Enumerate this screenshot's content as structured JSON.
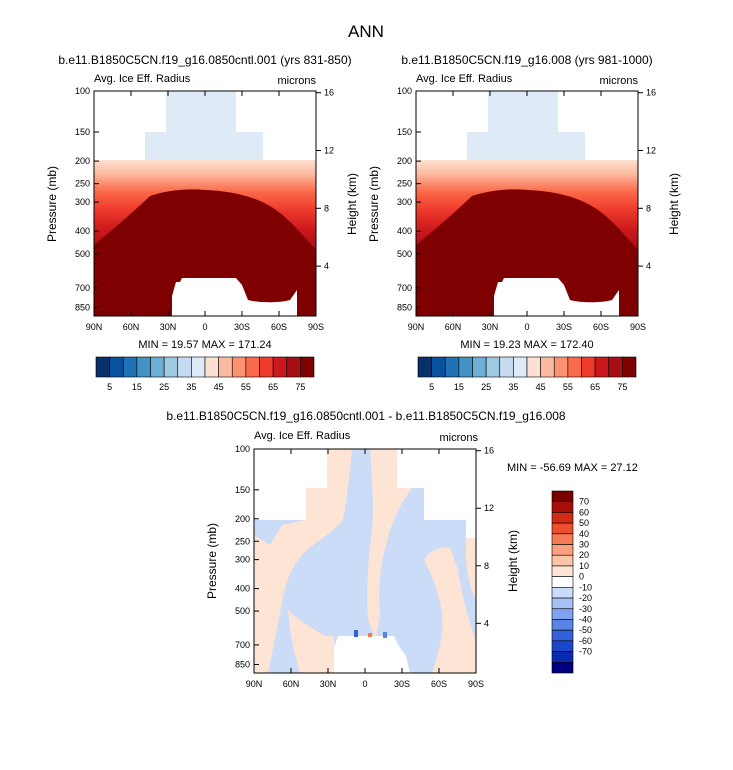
{
  "title": "ANN",
  "colors": {
    "base_scale": [
      "#08306b",
      "#08519c",
      "#2171b5",
      "#4292c6",
      "#6baed6",
      "#9ecae1",
      "#c6dbef",
      "#deebf7",
      "#fee0d2",
      "#fcbba1",
      "#fc9272",
      "#fb6a4a",
      "#ef3b2c",
      "#cb181d",
      "#a50f15",
      "#7f0000"
    ],
    "diff_scale": [
      "#00007f",
      "#0a2bb0",
      "#1c46cc",
      "#3560db",
      "#5a83e6",
      "#7fa3ee",
      "#a6c2f4",
      "#cbdcf8",
      "#ffffff",
      "#fde4d4",
      "#fbc5a9",
      "#f9a07f",
      "#f57a57",
      "#ec4f2e",
      "#d22a14",
      "#a80e08",
      "#7a0000"
    ],
    "missing": "#ffffff"
  },
  "chart_data": [
    {
      "type": "heatmap",
      "title": "b.e11.B1850C5CN.f19_g16.0850cntl.001 (yrs 831-850)",
      "left_label": "Avg. Ice Eff. Radius",
      "right_label": "microns",
      "xlabel": "",
      "ylabel": "Pressure (mb)",
      "ylabel_right": "Height (km)",
      "x_ticks": [
        "90N",
        "60N",
        "30N",
        "0",
        "30S",
        "60S",
        "90S"
      ],
      "y_ticks": [
        "100",
        "150",
        "200",
        "250",
        "300",
        "400",
        "500",
        "700",
        "850"
      ],
      "y_right_ticks": [
        "16",
        "12",
        "8",
        "4"
      ],
      "stats": "MIN = 19.57   MAX = 171.24",
      "colorbar_labels": [
        "5",
        "15",
        "25",
        "35",
        "45",
        "55",
        "65",
        "75"
      ]
    },
    {
      "type": "heatmap",
      "title": "b.e11.B1850C5CN.f19_g16.008 (yrs 981-1000)",
      "left_label": "Avg. Ice Eff. Radius",
      "right_label": "microns",
      "xlabel": "",
      "ylabel": "Pressure (mb)",
      "ylabel_right": "Height (km)",
      "x_ticks": [
        "90N",
        "60N",
        "30N",
        "0",
        "30S",
        "60S",
        "90S"
      ],
      "y_ticks": [
        "100",
        "150",
        "200",
        "250",
        "300",
        "400",
        "500",
        "700",
        "850"
      ],
      "y_right_ticks": [
        "16",
        "12",
        "8",
        "4"
      ],
      "stats": "MIN = 19.23   MAX = 172.40",
      "colorbar_labels": [
        "5",
        "15",
        "25",
        "35",
        "45",
        "55",
        "65",
        "75"
      ]
    },
    {
      "type": "heatmap",
      "title": "b.e11.B1850C5CN.f19_g16.0850cntl.001 - b.e11.B1850C5CN.f19_g16.008",
      "left_label": "Avg. Ice Eff. Radius",
      "right_label": "microns",
      "xlabel": "",
      "ylabel": "Pressure (mb)",
      "ylabel_right": "Height (km)",
      "x_ticks": [
        "90N",
        "60N",
        "30N",
        "0",
        "30S",
        "60S",
        "90S"
      ],
      "y_ticks": [
        "100",
        "150",
        "200",
        "250",
        "300",
        "400",
        "500",
        "700",
        "850"
      ],
      "y_right_ticks": [
        "16",
        "12",
        "8",
        "4"
      ],
      "stats": "MIN = -56.69  MAX = 27.12",
      "colorbar_labels": [
        "70",
        "60",
        "50",
        "40",
        "30",
        "20",
        "10",
        "0",
        "-10",
        "-20",
        "-30",
        "-40",
        "-50",
        "-60",
        "-70"
      ]
    }
  ]
}
